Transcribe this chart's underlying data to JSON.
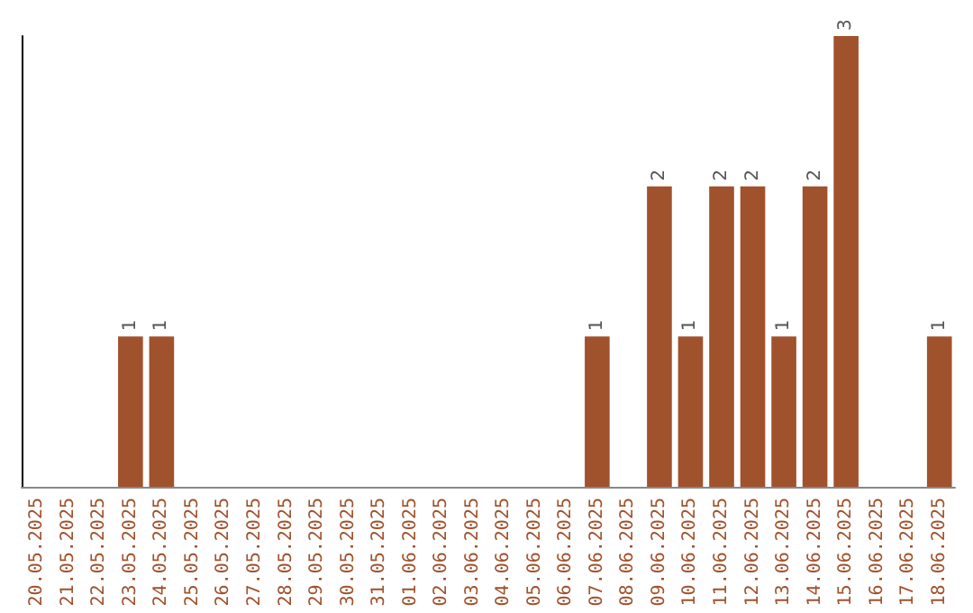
{
  "chart_data": {
    "type": "bar",
    "categories": [
      "20.05.2025",
      "21.05.2025",
      "22.05.2025",
      "23.05.2025",
      "24.05.2025",
      "25.05.2025",
      "26.05.2025",
      "27.05.2025",
      "28.05.2025",
      "29.05.2025",
      "30.05.2025",
      "31.05.2025",
      "01.06.2025",
      "02.06.2025",
      "03.06.2025",
      "04.06.2025",
      "05.06.2025",
      "06.06.2025",
      "07.06.2025",
      "08.06.2025",
      "09.06.2025",
      "10.06.2025",
      "11.06.2025",
      "12.06.2025",
      "13.06.2025",
      "14.06.2025",
      "15.06.2025",
      "16.06.2025",
      "17.06.2025",
      "18.06.2025"
    ],
    "values": [
      0,
      0,
      0,
      1,
      1,
      0,
      0,
      0,
      0,
      0,
      0,
      0,
      0,
      0,
      0,
      0,
      0,
      0,
      1,
      0,
      2,
      1,
      2,
      2,
      1,
      2,
      3,
      0,
      0,
      1
    ],
    "value_labels": [
      null,
      null,
      null,
      "1",
      "1",
      null,
      null,
      null,
      null,
      null,
      null,
      null,
      null,
      null,
      null,
      null,
      null,
      null,
      "1",
      null,
      "2",
      "1",
      "2",
      "2",
      "1",
      "2",
      "3",
      null,
      null,
      "1"
    ],
    "color": "#a0522d",
    "tick_labels": "x"
  }
}
